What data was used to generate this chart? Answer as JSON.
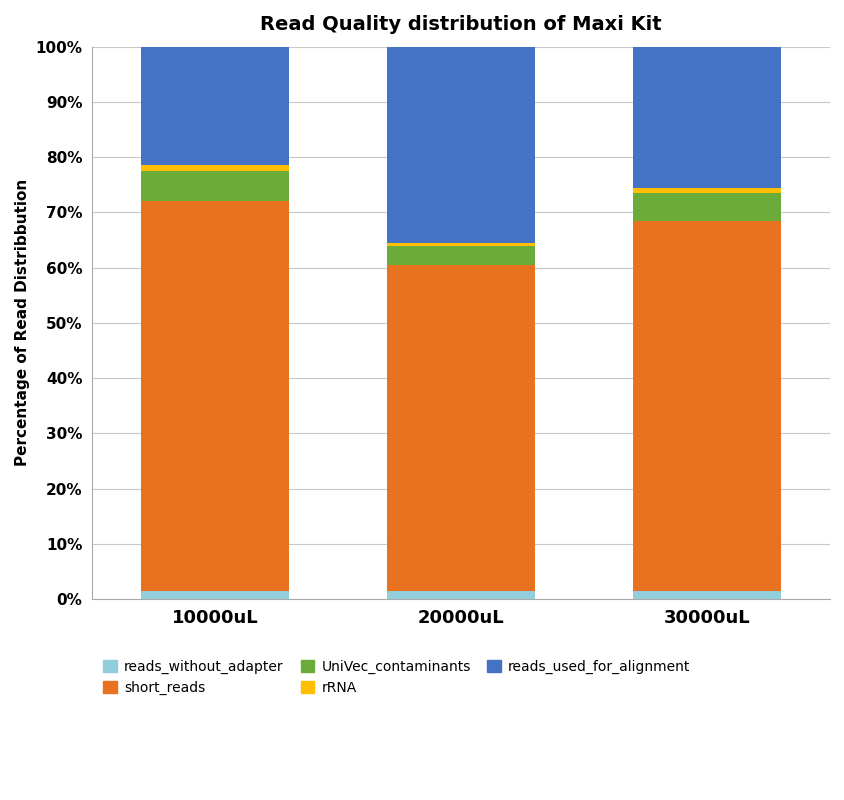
{
  "categories": [
    "10000uL",
    "20000uL",
    "30000uL"
  ],
  "title": "Read Quality distribution of Maxi Kit",
  "ylabel": "Percentage of Read Distribbution",
  "series": {
    "reads_without_adapter": [
      1.5,
      1.5,
      1.5
    ],
    "short_reads": [
      70.5,
      59.0,
      67.0
    ],
    "UniVec_contaminants": [
      5.5,
      3.5,
      5.0
    ],
    "rRNA": [
      1.0,
      0.5,
      1.0
    ],
    "reads_used_for_alignment": [
      21.5,
      35.5,
      25.5
    ]
  },
  "colors": {
    "reads_without_adapter": "#92CDDC",
    "short_reads": "#E87220",
    "UniVec_contaminants": "#6AAB3A",
    "rRNA": "#FFBF00",
    "reads_used_for_alignment": "#4472C4"
  },
  "legend_order": [
    "reads_without_adapter",
    "short_reads",
    "UniVec_contaminants",
    "rRNA",
    "reads_used_for_alignment"
  ],
  "bar_width": 0.6,
  "ylim": [
    0,
    100
  ],
  "yticks": [
    0,
    10,
    20,
    30,
    40,
    50,
    60,
    70,
    80,
    90,
    100
  ],
  "ytick_labels": [
    "0%",
    "10%",
    "20%",
    "30%",
    "40%",
    "50%",
    "60%",
    "70%",
    "80%",
    "90%",
    "100%"
  ],
  "background_color": "#FFFFFF",
  "plot_bg_color": "#FFFFFF",
  "grid_color": "#C8C8C8",
  "border_color": "#AAAAAA",
  "title_fontsize": 14,
  "label_fontsize": 11,
  "tick_fontsize": 11,
  "legend_fontsize": 10
}
